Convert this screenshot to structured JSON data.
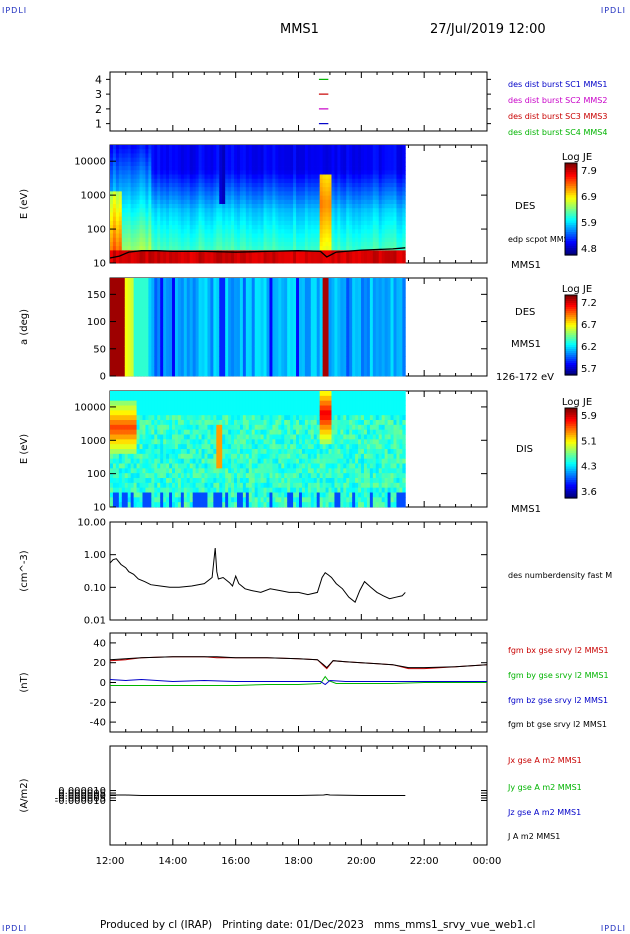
{
  "header": {
    "corner_label": "IPDLI",
    "spacecraft": "MMS1",
    "datetime": "27/Jul/2019 12:00"
  },
  "footer": {
    "produced_by": "Produced by cl (IRAP)",
    "printing_date": "Printing date: 01/Dec/2023",
    "file": "mms_mms1_srvy_vue_web1.cl"
  },
  "time_axis": {
    "tick_labels": [
      "12:00",
      "14:00",
      "16:00",
      "18:00",
      "20:00",
      "22:00",
      "00:00"
    ],
    "range_hours": [
      12,
      24
    ],
    "data_end_hour": 21.4
  },
  "chart_data": [
    {
      "type": "line",
      "panel": "burst-coverage",
      "yticks": [
        "1",
        "2",
        "3",
        "4"
      ],
      "ylim": [
        0.5,
        4.5
      ],
      "legend": [
        {
          "name": "des dist burst SC1 MMS1",
          "color": "#0000c8"
        },
        {
          "name": "des dist burst SC2 MMS2",
          "color": "#c800c8"
        },
        {
          "name": "des dist burst SC3 MMS3",
          "color": "#c80000"
        },
        {
          "name": "des dist burst SC4 MMS4",
          "color": "#00b400"
        }
      ],
      "series": [
        {
          "name": "des dist burst SC1 MMS1",
          "level": 1,
          "x": [
            18.65,
            18.95
          ]
        },
        {
          "name": "des dist burst SC2 MMS2",
          "level": 2,
          "x": [
            18.65,
            18.95
          ]
        },
        {
          "name": "des dist burst SC3 MMS3",
          "level": 3,
          "x": [
            18.65,
            18.95
          ]
        },
        {
          "name": "des dist burst SC4 MMS4",
          "level": 4,
          "x": [
            18.65,
            18.95
          ]
        }
      ]
    },
    {
      "type": "heatmap",
      "panel": "des-energy",
      "ylabel": "E (eV)",
      "yscale": "log",
      "ylim": [
        10,
        30000
      ],
      "yticks": [
        "10",
        "100",
        "1000",
        "10000"
      ],
      "label": "DES",
      "overlay_label": "edp scpot MMS1",
      "spacecraft_label": "MMS1",
      "colorbar": {
        "title": "Log JE",
        "ticks": [
          "7.9",
          "6.9",
          "5.9",
          "4.8"
        ]
      },
      "scpot_eV": {
        "x": [
          12.0,
          12.3,
          12.6,
          13.0,
          13.5,
          14.0,
          15.0,
          16.0,
          17.0,
          18.0,
          18.7,
          18.9,
          19.2,
          20.0,
          20.5,
          21.0,
          21.4
        ],
        "y": [
          14,
          16,
          21,
          23,
          23,
          22,
          22,
          21,
          22,
          23,
          22,
          15,
          21,
          24,
          25,
          26,
          28
        ]
      }
    },
    {
      "type": "heatmap",
      "panel": "des-pitch-angle",
      "ylabel": "a (deg)",
      "ylim": [
        0,
        180
      ],
      "yticks": [
        "0",
        "50",
        "100",
        "150"
      ],
      "label": "DES",
      "spacecraft_label": "MMS1",
      "energy_label": "126-172 eV",
      "colorbar": {
        "title": "Log JE",
        "ticks": [
          "7.2",
          "6.7",
          "6.2",
          "5.7"
        ]
      }
    },
    {
      "type": "heatmap",
      "panel": "dis-energy",
      "ylabel": "E (eV)",
      "yscale": "log",
      "ylim": [
        10,
        30000
      ],
      "yticks": [
        "10",
        "100",
        "1000",
        "10000"
      ],
      "label": "DIS",
      "spacecraft_label": "MMS1",
      "colorbar": {
        "title": "Log JE",
        "ticks": [
          "5.9",
          "5.1",
          "4.3",
          "3.6"
        ]
      }
    },
    {
      "type": "line",
      "panel": "density",
      "ylabel": "(cm^-3)",
      "yscale": "log",
      "ylim": [
        0.01,
        10
      ],
      "yticks": [
        "0.01",
        "0.10",
        "1.00",
        "10.00"
      ],
      "legend": [
        {
          "name": "des numberdensity fast M",
          "color": "#000000"
        }
      ],
      "series": [
        {
          "name": "des numberdensity fast M",
          "x": [
            12.0,
            12.1,
            12.2,
            12.35,
            12.5,
            12.6,
            12.75,
            12.9,
            13.1,
            13.3,
            13.6,
            13.9,
            14.2,
            14.6,
            15.0,
            15.25,
            15.35,
            15.4,
            15.45,
            15.6,
            15.8,
            15.9,
            16.0,
            16.1,
            16.3,
            16.5,
            16.8,
            17.1,
            17.4,
            17.7,
            18.0,
            18.3,
            18.6,
            18.75,
            18.85,
            18.95,
            19.05,
            19.2,
            19.4,
            19.6,
            19.8,
            19.95,
            20.1,
            20.3,
            20.5,
            20.7,
            20.9,
            21.1,
            21.3,
            21.4
          ],
          "y": [
            0.55,
            0.7,
            0.75,
            0.5,
            0.4,
            0.3,
            0.25,
            0.18,
            0.15,
            0.12,
            0.11,
            0.1,
            0.1,
            0.11,
            0.13,
            0.2,
            1.6,
            0.3,
            0.18,
            0.2,
            0.14,
            0.11,
            0.22,
            0.13,
            0.09,
            0.08,
            0.07,
            0.09,
            0.08,
            0.07,
            0.07,
            0.06,
            0.07,
            0.2,
            0.28,
            0.24,
            0.2,
            0.13,
            0.09,
            0.05,
            0.035,
            0.08,
            0.15,
            0.1,
            0.07,
            0.055,
            0.045,
            0.05,
            0.055,
            0.07
          ]
        }
      ]
    },
    {
      "type": "line",
      "panel": "fgm",
      "ylabel": "(nT)",
      "ylim": [
        -50,
        50
      ],
      "yticks": [
        "-40",
        "-20",
        "0",
        "20",
        "40"
      ],
      "legend": [
        {
          "name": "fgm bx gse srvy l2 MMS1",
          "color": "#c80000"
        },
        {
          "name": "fgm by gse srvy l2 MMS1",
          "color": "#00b400"
        },
        {
          "name": "fgm bz gse srvy l2 MMS1",
          "color": "#0000c8"
        },
        {
          "name": "fgm bt gse srvy l2 MMS1",
          "color": "#000000"
        }
      ],
      "series": [
        {
          "name": "fgm bx gse srvy l2 MMS1",
          "x": [
            12.0,
            12.5,
            13.0,
            14.0,
            15.0,
            15.4,
            16.0,
            17.0,
            18.0,
            18.6,
            18.8,
            18.9,
            19.1,
            19.5,
            20.0,
            21.0,
            21.5,
            22.0,
            23.0,
            24.0
          ],
          "y": [
            22,
            23,
            25,
            26,
            26,
            25,
            25,
            25,
            24,
            23,
            17,
            14,
            22,
            21,
            20,
            18,
            14,
            14,
            16,
            18
          ]
        },
        {
          "name": "fgm by gse srvy l2 MMS1",
          "x": [
            12.0,
            13.0,
            14.0,
            15.0,
            16.0,
            17.0,
            18.0,
            18.7,
            18.85,
            18.95,
            19.2,
            20.0,
            21.0,
            22.0,
            23.0,
            24.0
          ],
          "y": [
            -3,
            -3,
            -3,
            -3,
            -3,
            -2,
            -2,
            -1,
            6,
            2,
            -1,
            -1,
            -1,
            0,
            0,
            0
          ]
        },
        {
          "name": "fgm bz gse srvy l2 MMS1",
          "x": [
            12.0,
            12.5,
            13.0,
            14.0,
            15.0,
            16.0,
            17.0,
            18.0,
            18.7,
            18.85,
            19.0,
            19.5,
            20.0,
            21.0,
            22.0,
            23.0,
            24.0
          ],
          "y": [
            3,
            2,
            3,
            1,
            2,
            1,
            1,
            1,
            1,
            -2,
            2,
            1,
            1,
            1,
            1,
            1,
            1
          ]
        },
        {
          "name": "fgm bt gse srvy l2 MMS1",
          "x": [
            12.0,
            12.5,
            13.0,
            14.0,
            15.0,
            15.4,
            16.0,
            17.0,
            18.0,
            18.6,
            18.8,
            18.9,
            19.1,
            19.5,
            20.0,
            21.0,
            21.5,
            22.0,
            23.0,
            24.0
          ],
          "y": [
            23,
            24,
            25,
            26,
            26,
            26,
            25,
            25,
            24,
            23,
            18,
            15,
            22,
            21,
            20,
            18,
            15,
            15,
            16,
            18
          ]
        }
      ]
    },
    {
      "type": "line",
      "panel": "current-density",
      "ylabel": "(A/m2)",
      "ylim": [
        -0.0001,
        0.0001
      ],
      "yticks": [
        "-0.000010",
        "-0.000005",
        "0.000000",
        "0.000005",
        "0.000010"
      ],
      "legend": [
        {
          "name": "Jx gse A m2 MMS1",
          "color": "#c80000"
        },
        {
          "name": "Jy gse A m2 MMS1",
          "color": "#00b400"
        },
        {
          "name": "Jz gse A m2 MMS1",
          "color": "#0000c8"
        },
        {
          "name": "J A m2 MMS1",
          "color": "#000000"
        }
      ],
      "series": [
        {
          "name": "J A m2 MMS1",
          "x": [
            12.0,
            12.5,
            13.0,
            14.0,
            15.0,
            16.0,
            17.0,
            18.0,
            18.8,
            18.9,
            19.0,
            20.0,
            21.0,
            21.4
          ],
          "y": [
            1e-06,
            1e-06,
            0.0,
            0.0,
            0.0,
            0.0,
            0.0,
            0.0,
            1e-06,
            2e-06,
            1e-06,
            0.0,
            0.0,
            0.0
          ]
        }
      ]
    }
  ]
}
